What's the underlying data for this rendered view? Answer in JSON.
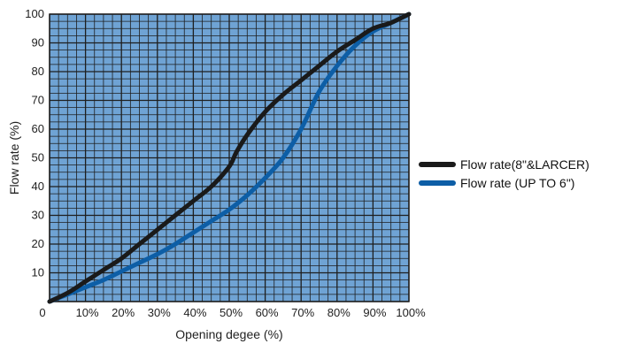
{
  "chart_data": {
    "type": "line",
    "title": "",
    "xlabel": "Opening degee (%)",
    "ylabel": "Flow rate (%)",
    "xlim": [
      0,
      100
    ],
    "ylim": [
      0,
      100
    ],
    "grid": true,
    "plot_background": "#6fa3d4",
    "grid_color": "#1e1e1e",
    "legend_position": "right",
    "origin_label": "0",
    "x_ticks": [
      10,
      20,
      30,
      40,
      50,
      60,
      70,
      80,
      90,
      100
    ],
    "x_tick_labels": [
      "10%",
      "20%",
      "30%",
      "40%",
      "50%",
      "60%",
      "70%",
      "80%",
      "90%",
      "100%"
    ],
    "y_ticks": [
      10,
      20,
      30,
      40,
      50,
      60,
      70,
      80,
      90,
      100
    ],
    "y_tick_labels": [
      "10",
      "20",
      "30",
      "40",
      "50",
      "60",
      "70",
      "80",
      "90",
      "100"
    ],
    "series": [
      {
        "name": "Flow rate(8\"&LARCER)",
        "color": "#1a1a1a",
        "x": [
          0,
          5,
          10,
          15,
          20,
          25,
          30,
          35,
          40,
          45,
          50,
          52,
          55,
          60,
          65,
          70,
          75,
          80,
          85,
          90,
          95,
          100
        ],
        "y": [
          0,
          3,
          7,
          11,
          15,
          20,
          25,
          30,
          35,
          40,
          47,
          52,
          58,
          66,
          72,
          77,
          82,
          87,
          91,
          95,
          97,
          100
        ]
      },
      {
        "name": "Flow rate (UP TO 6\")",
        "color": "#0d5ea6",
        "x": [
          0,
          5,
          10,
          15,
          20,
          25,
          30,
          35,
          40,
          45,
          50,
          55,
          60,
          65,
          70,
          75,
          80,
          85,
          90,
          95,
          100
        ],
        "y": [
          0,
          2.5,
          5,
          7.5,
          10.5,
          13.5,
          16.5,
          20,
          24,
          28,
          32,
          37,
          43,
          50,
          60,
          73,
          82,
          89,
          94,
          97,
          100
        ]
      }
    ]
  }
}
